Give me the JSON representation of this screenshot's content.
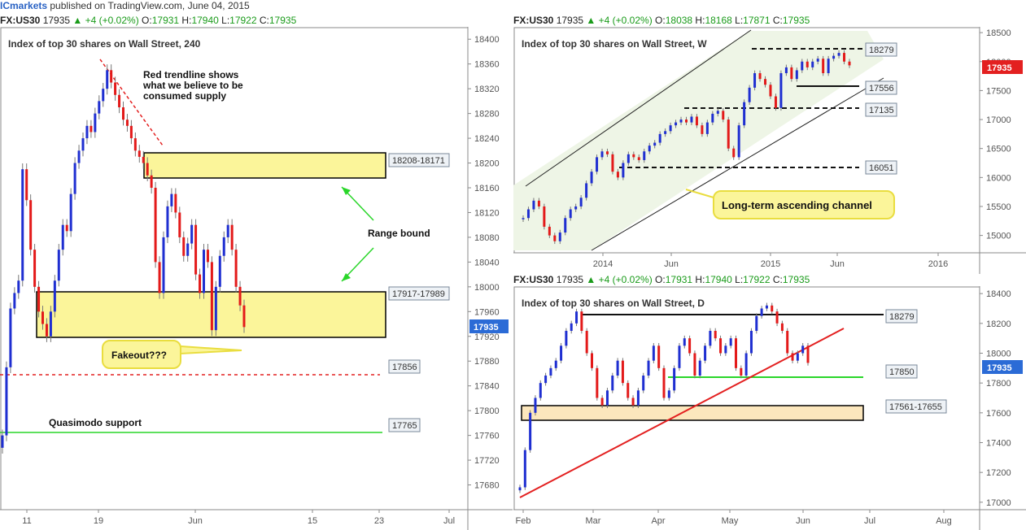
{
  "topbar": {
    "brand": "ICmarkets",
    "published": "published on TradingView.com, June 04, 2015"
  },
  "left": {
    "header": {
      "symbol": "FX:US30",
      "price": "17935",
      "change": "+4 (+0.02%)",
      "o": "17931",
      "h": "17940",
      "l": "17922",
      "c": "17935"
    },
    "title": "Index of top 30 shares on Wall Street, 240",
    "price_badge": "17935",
    "annotations": {
      "trendline_note": [
        "Red trendline shows",
        "what we believe to be",
        "consumed supply"
      ],
      "range": "Range bound",
      "fakeout": "Fakeout???",
      "quasimodo": "Quasimodo support"
    },
    "zones": [
      "18208-18171",
      "17917-17989"
    ],
    "levels": [
      "17856",
      "17765"
    ]
  },
  "weekly": {
    "header": {
      "symbol": "FX:US30",
      "price": "17935",
      "change": "+4 (+0.02%)",
      "o": "18038",
      "h": "18168",
      "l": "17871",
      "c": "17935"
    },
    "title": "Index of top 30 shares on Wall Street, W",
    "price_badge": "17935",
    "levels": [
      "18279",
      "17556",
      "17135",
      "16051"
    ],
    "channel_label": "Long-term ascending channel"
  },
  "daily": {
    "header": {
      "symbol": "FX:US30",
      "price": "17935",
      "change": "+4 (+0.02%)",
      "o": "17931",
      "h": "17940",
      "l": "17922",
      "c": "17935"
    },
    "title": "Index of top 30 shares on Wall Street, D",
    "price_badge": "17935",
    "levels": [
      "18279",
      "17850"
    ],
    "zones": [
      "17561-17655"
    ]
  },
  "chart_data": [
    {
      "type": "candlestick",
      "title": "Index of top 30 shares on Wall Street, 240",
      "ylim": [
        17640,
        18420
      ],
      "yticks": [
        17680,
        17720,
        17760,
        17800,
        17840,
        17880,
        17920,
        17960,
        18000,
        18040,
        18080,
        18120,
        18160,
        18200,
        18240,
        18280,
        18320,
        18360,
        18400
      ],
      "xticks": [
        "11",
        "19",
        "Jun",
        "15",
        "23",
        "Jul"
      ],
      "zones": [
        {
          "label": "18208-18171",
          "from": 18171,
          "to": 18208
        },
        {
          "label": "17917-17989",
          "from": 17917,
          "to": 17989
        }
      ],
      "lines": [
        {
          "label": "17856",
          "value": 17856,
          "style": "red-dashed"
        },
        {
          "label": "17765",
          "value": 17765,
          "style": "green-solid"
        }
      ],
      "close": [
        17760,
        17870,
        17965,
        17990,
        18010,
        18190,
        18140,
        18060,
        18000,
        17960,
        17940,
        17920,
        17960,
        18010,
        18060,
        18100,
        18090,
        18150,
        18200,
        18220,
        18240,
        18260,
        18250,
        18280,
        18300,
        18320,
        18350,
        18330,
        18310,
        18290,
        18270,
        18260,
        18240,
        18220,
        18210,
        18200,
        18180,
        18160,
        18040,
        17990,
        18080,
        18130,
        18150,
        18120,
        18080,
        18050,
        18070,
        18100,
        18020,
        17990,
        18060,
        18040,
        17930,
        18000,
        18050,
        18080,
        18100,
        18060,
        18000,
        17970,
        17935
      ]
    },
    {
      "type": "candlestick",
      "title": "Index of top 30 shares on Wall Street, W",
      "ylim": [
        14700,
        18600
      ],
      "yticks": [
        15000,
        15500,
        16000,
        16500,
        17000,
        17500,
        18000,
        18500
      ],
      "xticks": [
        "2014",
        "Jun",
        "2015",
        "Jun",
        "2016"
      ],
      "lines": [
        {
          "label": "18279",
          "value": 18279
        },
        {
          "label": "17556",
          "value": 17556
        },
        {
          "label": "17135",
          "value": 17135
        },
        {
          "label": "16051",
          "value": 16051
        }
      ],
      "annotation": "Long-term ascending channel",
      "close": [
        15300,
        15450,
        15600,
        15500,
        15150,
        15000,
        14900,
        15050,
        15300,
        15450,
        15500,
        15650,
        15900,
        16100,
        16350,
        16450,
        16400,
        16100,
        16000,
        16250,
        16400,
        16350,
        16300,
        16450,
        16550,
        16600,
        16750,
        16800,
        16900,
        16950,
        17000,
        16950,
        17050,
        16900,
        16750,
        16950,
        17100,
        17150,
        17000,
        16500,
        16350,
        16900,
        17300,
        17550,
        17800,
        17700,
        17600,
        17400,
        17200,
        17800,
        17900,
        17700,
        17850,
        18000,
        17900,
        18000,
        18050,
        17800,
        18050,
        18100,
        18150,
        18000,
        17935
      ]
    },
    {
      "type": "candlestick",
      "title": "Index of top 30 shares on Wall Street, D",
      "ylim": [
        16950,
        18450
      ],
      "yticks": [
        17000,
        17200,
        17400,
        17600,
        17800,
        18000,
        18200,
        18400
      ],
      "xticks": [
        "Feb",
        "Mar",
        "Apr",
        "May",
        "Jun",
        "Jul",
        "Aug"
      ],
      "zones": [
        {
          "label": "17561-17655",
          "from": 17561,
          "to": 17655
        }
      ],
      "lines": [
        {
          "label": "18279",
          "value": 18279
        },
        {
          "label": "17850",
          "value": 17850
        }
      ],
      "close": [
        17100,
        17350,
        17600,
        17700,
        17800,
        17850,
        17900,
        17950,
        18050,
        18150,
        18200,
        18280,
        18150,
        18000,
        17900,
        17700,
        17650,
        17750,
        17850,
        17950,
        17800,
        17700,
        17650,
        17750,
        17850,
        17950,
        18050,
        17900,
        17700,
        17750,
        17900,
        18050,
        18100,
        18000,
        17850,
        17950,
        18050,
        18150,
        18100,
        18000,
        18050,
        18100,
        17900,
        17850,
        18000,
        18150,
        18250,
        18300,
        18320,
        18280,
        18200,
        18150,
        18000,
        17950,
        18000,
        18050,
        17935
      ]
    }
  ]
}
